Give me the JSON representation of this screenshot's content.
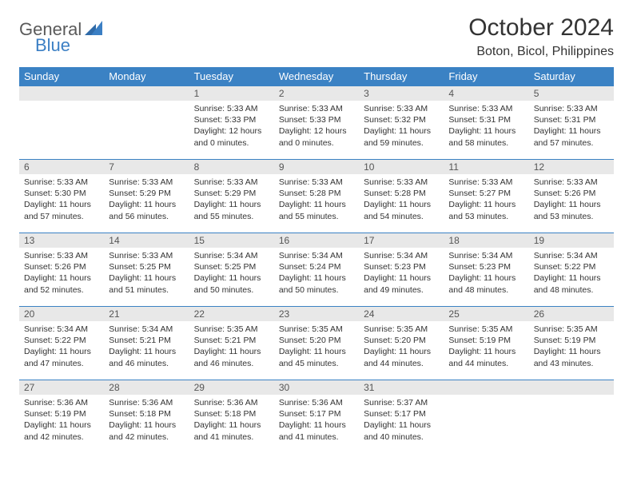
{
  "brand": {
    "part1": "General",
    "part2": "Blue"
  },
  "title": "October 2024",
  "location": "Boton, Bicol, Philippines",
  "colors": {
    "header_bg": "#3b82c4",
    "header_fg": "#ffffff",
    "daynum_bg": "#e8e8e8",
    "cell_border": "#3b82c4",
    "logo_blue": "#3b7fc4",
    "logo_gray": "#5a5a5a"
  },
  "dayHeaders": [
    "Sunday",
    "Monday",
    "Tuesday",
    "Wednesday",
    "Thursday",
    "Friday",
    "Saturday"
  ],
  "weeks": [
    [
      null,
      null,
      {
        "n": "1",
        "sr": "5:33 AM",
        "ss": "5:33 PM",
        "dl": "12 hours and 0 minutes."
      },
      {
        "n": "2",
        "sr": "5:33 AM",
        "ss": "5:33 PM",
        "dl": "12 hours and 0 minutes."
      },
      {
        "n": "3",
        "sr": "5:33 AM",
        "ss": "5:32 PM",
        "dl": "11 hours and 59 minutes."
      },
      {
        "n": "4",
        "sr": "5:33 AM",
        "ss": "5:31 PM",
        "dl": "11 hours and 58 minutes."
      },
      {
        "n": "5",
        "sr": "5:33 AM",
        "ss": "5:31 PM",
        "dl": "11 hours and 57 minutes."
      }
    ],
    [
      {
        "n": "6",
        "sr": "5:33 AM",
        "ss": "5:30 PM",
        "dl": "11 hours and 57 minutes."
      },
      {
        "n": "7",
        "sr": "5:33 AM",
        "ss": "5:29 PM",
        "dl": "11 hours and 56 minutes."
      },
      {
        "n": "8",
        "sr": "5:33 AM",
        "ss": "5:29 PM",
        "dl": "11 hours and 55 minutes."
      },
      {
        "n": "9",
        "sr": "5:33 AM",
        "ss": "5:28 PM",
        "dl": "11 hours and 55 minutes."
      },
      {
        "n": "10",
        "sr": "5:33 AM",
        "ss": "5:28 PM",
        "dl": "11 hours and 54 minutes."
      },
      {
        "n": "11",
        "sr": "5:33 AM",
        "ss": "5:27 PM",
        "dl": "11 hours and 53 minutes."
      },
      {
        "n": "12",
        "sr": "5:33 AM",
        "ss": "5:26 PM",
        "dl": "11 hours and 53 minutes."
      }
    ],
    [
      {
        "n": "13",
        "sr": "5:33 AM",
        "ss": "5:26 PM",
        "dl": "11 hours and 52 minutes."
      },
      {
        "n": "14",
        "sr": "5:33 AM",
        "ss": "5:25 PM",
        "dl": "11 hours and 51 minutes."
      },
      {
        "n": "15",
        "sr": "5:34 AM",
        "ss": "5:25 PM",
        "dl": "11 hours and 50 minutes."
      },
      {
        "n": "16",
        "sr": "5:34 AM",
        "ss": "5:24 PM",
        "dl": "11 hours and 50 minutes."
      },
      {
        "n": "17",
        "sr": "5:34 AM",
        "ss": "5:23 PM",
        "dl": "11 hours and 49 minutes."
      },
      {
        "n": "18",
        "sr": "5:34 AM",
        "ss": "5:23 PM",
        "dl": "11 hours and 48 minutes."
      },
      {
        "n": "19",
        "sr": "5:34 AM",
        "ss": "5:22 PM",
        "dl": "11 hours and 48 minutes."
      }
    ],
    [
      {
        "n": "20",
        "sr": "5:34 AM",
        "ss": "5:22 PM",
        "dl": "11 hours and 47 minutes."
      },
      {
        "n": "21",
        "sr": "5:34 AM",
        "ss": "5:21 PM",
        "dl": "11 hours and 46 minutes."
      },
      {
        "n": "22",
        "sr": "5:35 AM",
        "ss": "5:21 PM",
        "dl": "11 hours and 46 minutes."
      },
      {
        "n": "23",
        "sr": "5:35 AM",
        "ss": "5:20 PM",
        "dl": "11 hours and 45 minutes."
      },
      {
        "n": "24",
        "sr": "5:35 AM",
        "ss": "5:20 PM",
        "dl": "11 hours and 44 minutes."
      },
      {
        "n": "25",
        "sr": "5:35 AM",
        "ss": "5:19 PM",
        "dl": "11 hours and 44 minutes."
      },
      {
        "n": "26",
        "sr": "5:35 AM",
        "ss": "5:19 PM",
        "dl": "11 hours and 43 minutes."
      }
    ],
    [
      {
        "n": "27",
        "sr": "5:36 AM",
        "ss": "5:19 PM",
        "dl": "11 hours and 42 minutes."
      },
      {
        "n": "28",
        "sr": "5:36 AM",
        "ss": "5:18 PM",
        "dl": "11 hours and 42 minutes."
      },
      {
        "n": "29",
        "sr": "5:36 AM",
        "ss": "5:18 PM",
        "dl": "11 hours and 41 minutes."
      },
      {
        "n": "30",
        "sr": "5:36 AM",
        "ss": "5:17 PM",
        "dl": "11 hours and 41 minutes."
      },
      {
        "n": "31",
        "sr": "5:37 AM",
        "ss": "5:17 PM",
        "dl": "11 hours and 40 minutes."
      },
      null,
      null
    ]
  ],
  "labels": {
    "sunrise": "Sunrise:",
    "sunset": "Sunset:",
    "daylight": "Daylight:"
  }
}
